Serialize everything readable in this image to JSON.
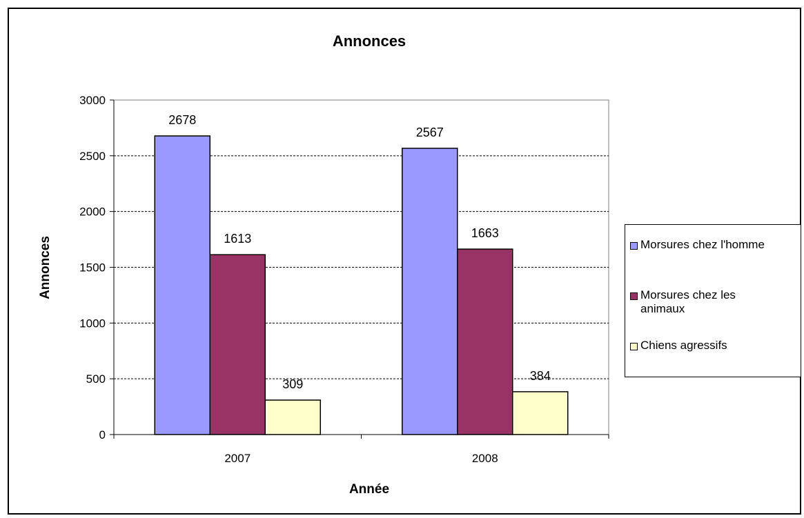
{
  "chart_data": {
    "type": "bar",
    "title": "Annonces",
    "xlabel": "Année",
    "ylabel": "Annonces",
    "categories": [
      "2007",
      "2008"
    ],
    "ylim": [
      0,
      3000
    ],
    "yticks": [
      0,
      500,
      1000,
      1500,
      2000,
      2500,
      3000
    ],
    "grid": true,
    "legend_position": "right",
    "series": [
      {
        "name": "Morsures chez l'homme",
        "values": [
          2678,
          2567
        ],
        "color": "#9999ff"
      },
      {
        "name": "Morsures chez les animaux",
        "values": [
          1613,
          1663
        ],
        "color": "#993366"
      },
      {
        "name": "Chiens agressifs",
        "values": [
          309,
          384
        ],
        "color": "#ffffcc"
      }
    ]
  }
}
